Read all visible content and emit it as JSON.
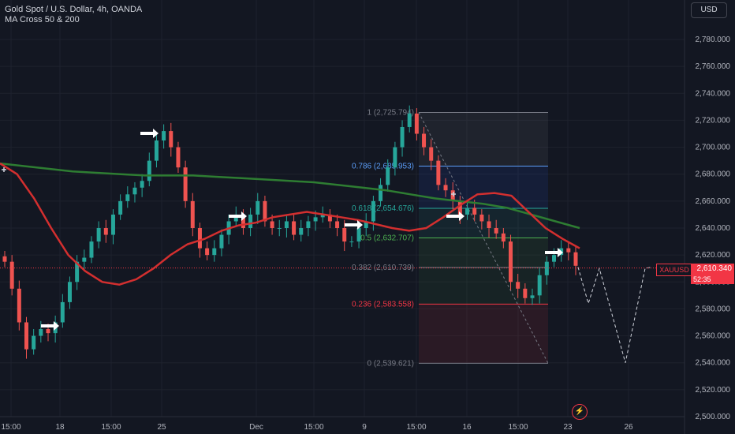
{
  "header": {
    "title": "Gold Spot / U.S. Dollar, 4h, OANDA",
    "indicator": "MA Cross 50 & 200"
  },
  "currency_button": "USD",
  "price_label": {
    "symbol": "XAUUSD",
    "value": "2,610.340",
    "countdown": "52:35"
  },
  "colors": {
    "background": "#131722",
    "up_candle": "#26a69a",
    "down_candle": "#ef5350",
    "ma_fast": "#d32f2f",
    "ma_slow": "#2e7d32",
    "price_line": "#f23645"
  },
  "chart_data": {
    "type": "candlestick",
    "symbol": "XAUUSD",
    "interval": "4h",
    "y_axis": {
      "range": [
        2500,
        2800
      ],
      "ticks": [
        "2,500.000",
        "2,520.000",
        "2,540.000",
        "2,560.000",
        "2,580.000",
        "2,600.000",
        "2,620.000",
        "2,640.000",
        "2,660.000",
        "2,680.000",
        "2,700.000",
        "2,720.000",
        "2,740.000",
        "2,760.000",
        "2,780.000"
      ],
      "position": "right"
    },
    "x_axis": {
      "ticks": [
        "15:00",
        "18",
        "15:00",
        "25",
        "Dec",
        "15:00",
        "9",
        "15:00",
        "16",
        "15:00",
        "23",
        "26"
      ]
    },
    "last_price": 2610.34,
    "close_path": [
      2615,
      2595,
      2570,
      2550,
      2560,
      2565,
      2562,
      2570,
      2585,
      2600,
      2615,
      2618,
      2630,
      2640,
      2635,
      2650,
      2660,
      2665,
      2670,
      2675,
      2690,
      2705,
      2712,
      2700,
      2685,
      2660,
      2640,
      2625,
      2620,
      2625,
      2635,
      2645,
      2650,
      2640,
      2650,
      2660,
      2645,
      2640,
      2640,
      2645,
      2635,
      2640,
      2645,
      2648,
      2650,
      2645,
      2640,
      2630,
      2630,
      2640,
      2645,
      2660,
      2672,
      2685,
      2700,
      2715,
      2725,
      2710,
      2700,
      2690,
      2672,
      2668,
      2660,
      2650,
      2655,
      2650,
      2645,
      2640,
      2636,
      2630,
      2600,
      2595,
      2588,
      2590,
      2605,
      2615,
      2620,
      2625,
      2622,
      2612
    ],
    "ma_50": [
      2688,
      2680,
      2662,
      2640,
      2620,
      2608,
      2600,
      2598,
      2602,
      2610,
      2620,
      2628,
      2632,
      2638,
      2642,
      2644,
      2648,
      2650,
      2652,
      2650,
      2648,
      2646,
      2643,
      2640,
      2638,
      2640,
      2648,
      2657,
      2665,
      2666,
      2664,
      2652,
      2640,
      2632,
      2625
    ],
    "ma_200": [
      2688,
      2686,
      2684,
      2682,
      2681,
      2680,
      2679,
      2679,
      2679,
      2678,
      2677,
      2676,
      2675,
      2674,
      2672,
      2670,
      2668,
      2665,
      2662,
      2660,
      2658,
      2655,
      2650,
      2645,
      2640
    ],
    "projection": [
      2611,
      2584,
      2610,
      2540,
      2610,
      2611
    ],
    "fibonacci": [
      {
        "level": "1",
        "price": 2725.794,
        "label": "1 (2,725.794)"
      },
      {
        "level": "0.786",
        "price": 2685.953,
        "label": "0.786 (2,685.953)"
      },
      {
        "level": "0.618",
        "price": 2654.676,
        "label": "0.618 (2,654.676)"
      },
      {
        "level": "0.5",
        "price": 2632.707,
        "label": "0.5 (2,632.707)"
      },
      {
        "level": "0.382",
        "price": 2610.739,
        "label": "0.382 (2,610.739)"
      },
      {
        "level": "0.236",
        "price": 2583.558,
        "label": "0.236 (2,583.558)"
      },
      {
        "level": "0",
        "price": 2539.621,
        "label": "0 (2,539.621)"
      }
    ]
  }
}
